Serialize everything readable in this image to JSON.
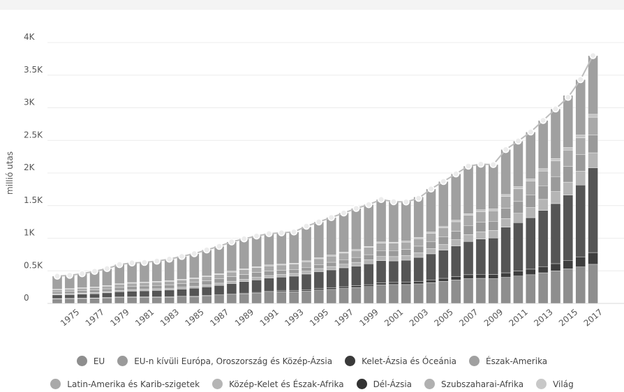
{
  "chart_data": {
    "type": "bar",
    "stacked": true,
    "ylabel": "millió utas",
    "xlabel": "",
    "ylim": [
      0,
      4000
    ],
    "y_ticks": [
      {
        "value": 0,
        "label": "0"
      },
      {
        "value": 500,
        "label": "0.5K"
      },
      {
        "value": 1000,
        "label": "1K"
      },
      {
        "value": 1500,
        "label": "1.5K"
      },
      {
        "value": 2000,
        "label": "2K"
      },
      {
        "value": 2500,
        "label": "2.5K"
      },
      {
        "value": 3000,
        "label": "3K"
      },
      {
        "value": 3500,
        "label": "3.5K"
      },
      {
        "value": 4000,
        "label": "4K"
      }
    ],
    "x_tick_labels": [
      "1975",
      "1977",
      "1979",
      "1981",
      "1983",
      "1985",
      "1987",
      "1989",
      "1991",
      "1993",
      "1995",
      "1997",
      "1999",
      "2001",
      "2003",
      "2005",
      "2007",
      "2009",
      "2011",
      "2013",
      "2015",
      "2017"
    ],
    "categories": [
      "1974",
      "1975",
      "1976",
      "1977",
      "1978",
      "1979",
      "1980",
      "1981",
      "1982",
      "1983",
      "1984",
      "1985",
      "1986",
      "1987",
      "1988",
      "1989",
      "1990",
      "1991",
      "1992",
      "1993",
      "1994",
      "1995",
      "1996",
      "1997",
      "1998",
      "1999",
      "2000",
      "2001",
      "2002",
      "2003",
      "2004",
      "2005",
      "2006",
      "2007",
      "2008",
      "2009",
      "2010",
      "2011",
      "2012",
      "2013",
      "2014",
      "2015",
      "2016",
      "2017"
    ],
    "series": [
      {
        "name": "EU",
        "color": "#8e8e8e",
        "values": [
          70,
          72,
          75,
          78,
          85,
          92,
          95,
          95,
          95,
          96,
          100,
          105,
          112,
          120,
          132,
          145,
          155,
          175,
          178,
          180,
          190,
          205,
          215,
          230,
          245,
          260,
          285,
          290,
          290,
          300,
          320,
          340,
          360,
          380,
          385,
          380,
          400,
          420,
          440,
          470,
          500,
          530,
          560,
          600
        ]
      },
      {
        "name": "Dél-Ázsia",
        "color": "#3e3e3e",
        "values": [
          5,
          5,
          6,
          6,
          7,
          7,
          8,
          8,
          9,
          9,
          10,
          10,
          11,
          12,
          13,
          14,
          15,
          15,
          16,
          18,
          20,
          22,
          24,
          26,
          27,
          28,
          30,
          32,
          33,
          36,
          40,
          45,
          52,
          60,
          62,
          64,
          70,
          78,
          85,
          95,
          110,
          130,
          155,
          180
        ]
      },
      {
        "name": "Kelet-Ázsia és Óceánia",
        "color": "#555555",
        "values": [
          55,
          58,
          62,
          65,
          70,
          80,
          85,
          90,
          95,
          100,
          110,
          120,
          130,
          145,
          160,
          175,
          190,
          200,
          210,
          220,
          240,
          260,
          275,
          290,
          300,
          320,
          340,
          330,
          340,
          370,
          400,
          430,
          470,
          510,
          540,
          560,
          700,
          740,
          790,
          860,
          920,
          1000,
          1100,
          1300
        ]
      },
      {
        "name": "Közép-Kelet és Észak-Afrika",
        "color": "#b5b5b5",
        "values": [
          15,
          15,
          17,
          18,
          20,
          22,
          24,
          25,
          26,
          27,
          28,
          30,
          32,
          34,
          36,
          38,
          40,
          38,
          40,
          42,
          45,
          48,
          52,
          55,
          58,
          60,
          65,
          66,
          70,
          72,
          80,
          88,
          95,
          105,
          110,
          115,
          130,
          145,
          155,
          170,
          185,
          200,
          215,
          230
        ]
      },
      {
        "name": "EU-n kívüli Európa, Oroszország és Közép-Ázsia",
        "color": "#9a9a9a",
        "values": [
          35,
          36,
          38,
          40,
          42,
          45,
          48,
          50,
          50,
          52,
          55,
          58,
          62,
          66,
          70,
          72,
          75,
          70,
          65,
          60,
          58,
          60,
          65,
          70,
          75,
          80,
          90,
          92,
          95,
          100,
          110,
          120,
          130,
          140,
          150,
          140,
          160,
          180,
          195,
          210,
          230,
          240,
          250,
          270
        ]
      },
      {
        "name": "Latin-Amerika és Karib-szigetek",
        "color": "#a9a9a9",
        "values": [
          30,
          32,
          34,
          36,
          40,
          45,
          50,
          50,
          52,
          54,
          56,
          58,
          62,
          66,
          70,
          72,
          75,
          78,
          80,
          82,
          86,
          90,
          95,
          100,
          105,
          110,
          115,
          112,
          110,
          115,
          125,
          135,
          145,
          155,
          160,
          162,
          180,
          195,
          210,
          225,
          240,
          250,
          260,
          275
        ]
      },
      {
        "name": "Subszaharai-Afrika",
        "color": "#c4c4c4",
        "values": [
          8,
          8,
          9,
          9,
          10,
          10,
          11,
          11,
          11,
          11,
          12,
          12,
          12,
          13,
          13,
          14,
          14,
          14,
          14,
          14,
          15,
          15,
          16,
          16,
          17,
          17,
          18,
          18,
          18,
          19,
          20,
          22,
          24,
          26,
          28,
          28,
          30,
          32,
          34,
          36,
          38,
          40,
          42,
          45
        ]
      },
      {
        "name": "Észak-Amerika",
        "color": "#a0a0a0",
        "values": [
          200,
          205,
          215,
          240,
          260,
          295,
          300,
          300,
          310,
          330,
          350,
          370,
          400,
          420,
          450,
          460,
          470,
          480,
          480,
          480,
          520,
          550,
          575,
          600,
          630,
          640,
          650,
          620,
          610,
          620,
          660,
          690,
          710,
          730,
          700,
          680,
          690,
          700,
          720,
          740,
          760,
          800,
          850,
          900
        ]
      }
    ],
    "world": {
      "name": "Világ",
      "color": "#c8c8c8",
      "values": [
        418,
        431,
        456,
        492,
        534,
        596,
        621,
        629,
        648,
        679,
        721,
        763,
        821,
        876,
        944,
        990,
        1034,
        1070,
        1083,
        1096,
        1184,
        1250,
        1317,
        1387,
        1457,
        1515,
        1593,
        1560,
        1556,
        1612,
        1755,
        1870,
        1986,
        2106,
        2135,
        2129,
        2360,
        2490,
        2629,
        2806,
        2983,
        3160,
        3432,
        3800
      ]
    },
    "legend_order": [
      "EU",
      "EU-n kívüli Európa, Oroszország és Közép-Ázsia",
      "Kelet-Ázsia és Óceánia",
      "Észak-Amerika",
      "Latin-Amerika és Karib-szigetek",
      "Közép-Kelet és Észak-Afrika",
      "Dél-Ázsia",
      "Szubszaharai-Afrika",
      "Világ"
    ],
    "legend_placement": "bottom",
    "grid": true
  },
  "legend": {
    "row1": [
      {
        "label": "EU",
        "color": "#8e8e8e"
      },
      {
        "label": "EU-n kívüli Európa, Oroszország és Közép-Ázsia",
        "color": "#9a9a9a"
      },
      {
        "label": "Kelet-Ázsia és Óceánia",
        "color": "#3a3a3a"
      },
      {
        "label": "Észak-Amerika",
        "color": "#a0a0a0"
      }
    ],
    "row2": [
      {
        "label": "Latin-Amerika és Karib-szigetek",
        "color": "#a9a9a9"
      },
      {
        "label": "Közép-Kelet és Észak-Afrika",
        "color": "#b5b5b5"
      },
      {
        "label": "Dél-Ázsia",
        "color": "#333333"
      },
      {
        "label": "Szubszaharai-Afrika",
        "color": "#b0b0b0"
      },
      {
        "label": "Világ",
        "color": "#c8c8c8"
      }
    ]
  }
}
